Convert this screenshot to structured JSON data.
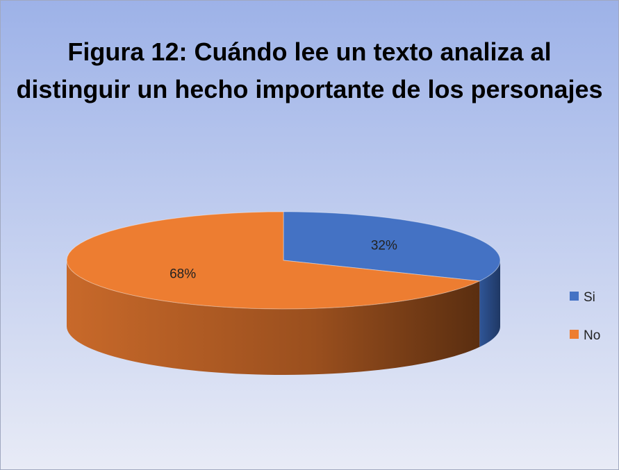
{
  "chart_data": {
    "type": "pie",
    "title": "Figura 12: Cuándo lee un texto analiza al distinguir un hecho importante de los personajes",
    "categories": [
      "Si",
      "No"
    ],
    "values": [
      32,
      68
    ],
    "value_labels": [
      "32%",
      "68%"
    ],
    "colors": [
      "#4472c4",
      "#ed7d31"
    ],
    "legend": "right"
  }
}
